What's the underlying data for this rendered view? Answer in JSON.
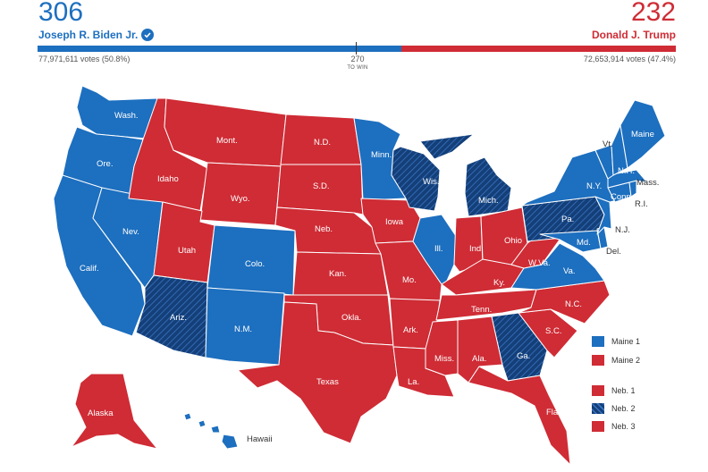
{
  "header": {
    "biden_ev": "306",
    "biden_name": "Joseph R. Biden Jr.",
    "biden_votes": "77,971,611 votes (50.8%)",
    "trump_ev": "232",
    "trump_name": "Donald J. Trump",
    "trump_votes": "72,653,914 votes (47.4%)",
    "to_win_number": "270",
    "to_win_label": "TO WIN"
  },
  "colors": {
    "dem": "#1d6fbf",
    "rep": "#cf2c35",
    "dem_hatch": "#143f78"
  },
  "states": {
    "wash": "Wash.",
    "ore": "Ore.",
    "calif": "Calif.",
    "nev": "Nev.",
    "idaho": "Idaho",
    "mont": "Mont.",
    "wyo": "Wyo.",
    "utah": "Utah",
    "ariz": "Ariz.",
    "colo": "Colo.",
    "nm": "N.M.",
    "nd": "N.D.",
    "sd": "S.D.",
    "neb": "Neb.",
    "kan": "Kan.",
    "okla": "Okla.",
    "texas": "Texas",
    "minn": "Minn.",
    "iowa": "Iowa",
    "mo": "Mo.",
    "ark": "Ark.",
    "la": "La.",
    "wis": "Wis.",
    "ill": "Ill.",
    "mich": "Mich.",
    "ind": "Ind.",
    "ohio": "Ohio",
    "ky": "Ky.",
    "tenn": "Tenn.",
    "miss": "Miss.",
    "ala": "Ala.",
    "ga": "Ga.",
    "fla": "Fla.",
    "sc": "S.C.",
    "nc": "N.C.",
    "va": "Va.",
    "wva": "W.Va.",
    "pa": "Pa.",
    "ny": "N.Y.",
    "vt": "Vt.",
    "nh": "N.H.",
    "maine": "Maine",
    "mass": "Mass.",
    "conn": "Conn.",
    "ri": "R.I.",
    "nj": "N.J.",
    "del": "Del.",
    "md": "Md.",
    "alaska": "Alaska",
    "hawaii": "Hawaii"
  },
  "legend": [
    {
      "label": "Maine 1",
      "party": "dem"
    },
    {
      "label": "Maine 2",
      "party": "rep"
    },
    {
      "label": "Neb. 1",
      "party": "rep"
    },
    {
      "label": "Neb. 2",
      "party": "dem_hatch"
    },
    {
      "label": "Neb. 3",
      "party": "rep"
    }
  ]
}
